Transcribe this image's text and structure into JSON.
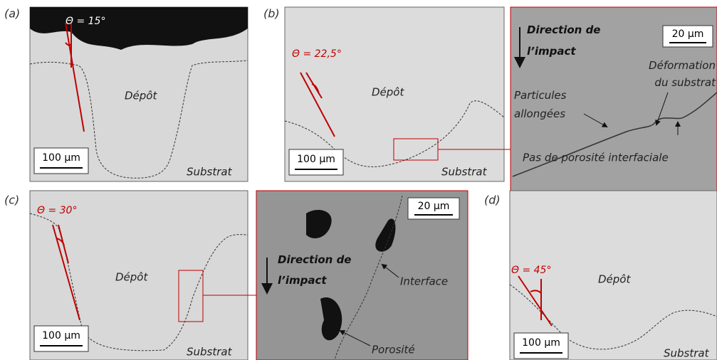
{
  "panels": [
    {
      "label": "(a)",
      "angle": "Θ = 15°",
      "deposit": "Dépôt",
      "substrate": "Substrat",
      "scale": "100 µm"
    },
    {
      "label": "(b)",
      "angle": "Θ = 22,5°",
      "deposit": "Dépôt",
      "substrate": "Substrat",
      "scale": "100 µm"
    },
    {
      "label": "(c)",
      "angle": "Θ = 30°",
      "deposit": "Dépôt",
      "substrate": "Substrat",
      "scale": "100 µm"
    },
    {
      "label": "(d)",
      "angle": "Θ = 45°",
      "deposit": "Dépôt",
      "substrate": "Substrat",
      "scale": "100 µm"
    }
  ],
  "zoom_b": {
    "direction": [
      "Direction de",
      "l’impact"
    ],
    "scale": "20 µm",
    "deformation": [
      "Déformation",
      "du substrat"
    ],
    "particles": [
      "Particules",
      "allongées"
    ],
    "porosity": "Pas de porosité interfaciale"
  },
  "zoom_c": {
    "direction": [
      "Direction de",
      "l’impact"
    ],
    "scale": "20 µm",
    "interface": "Interface",
    "porosity": "Porosité"
  }
}
